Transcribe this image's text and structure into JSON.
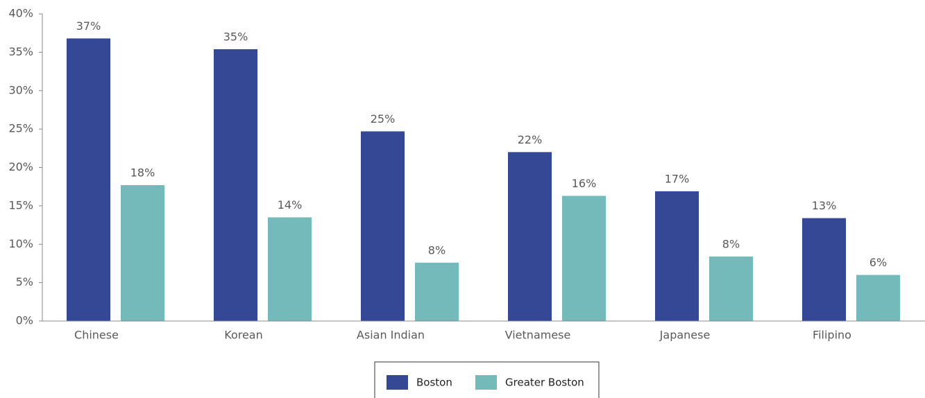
{
  "chart_data": {
    "type": "bar",
    "categories": [
      "Chinese",
      "Korean",
      "Asian Indian",
      "Vietnamese",
      "Japanese",
      "Filipino"
    ],
    "series": [
      {
        "name": "Boston",
        "color": "#354895",
        "values": [
          36.8,
          35.4,
          24.7,
          22.0,
          16.9,
          13.4
        ],
        "value_labels": [
          "37%",
          "35%",
          "25%",
          "22%",
          "17%",
          "13%"
        ]
      },
      {
        "name": "Greater Boston",
        "color": "#75baba",
        "values": [
          17.7,
          13.5,
          7.6,
          16.3,
          8.4,
          6.0
        ],
        "value_labels": [
          "18%",
          "14%",
          "8%",
          "16%",
          "8%",
          "6%"
        ]
      }
    ],
    "ylim": [
      0,
      40
    ],
    "yticks": [
      {
        "value": 0,
        "label": "0%"
      },
      {
        "value": 5,
        "label": "5%"
      },
      {
        "value": 10,
        "label": "10%"
      },
      {
        "value": 15,
        "label": "15%"
      },
      {
        "value": 20,
        "label": "20%"
      },
      {
        "value": 25,
        "label": "25%"
      },
      {
        "value": 30,
        "label": "30%"
      },
      {
        "value": 35,
        "label": "35%"
      },
      {
        "value": 40,
        "label": "40%"
      }
    ],
    "legend": "bottom"
  }
}
